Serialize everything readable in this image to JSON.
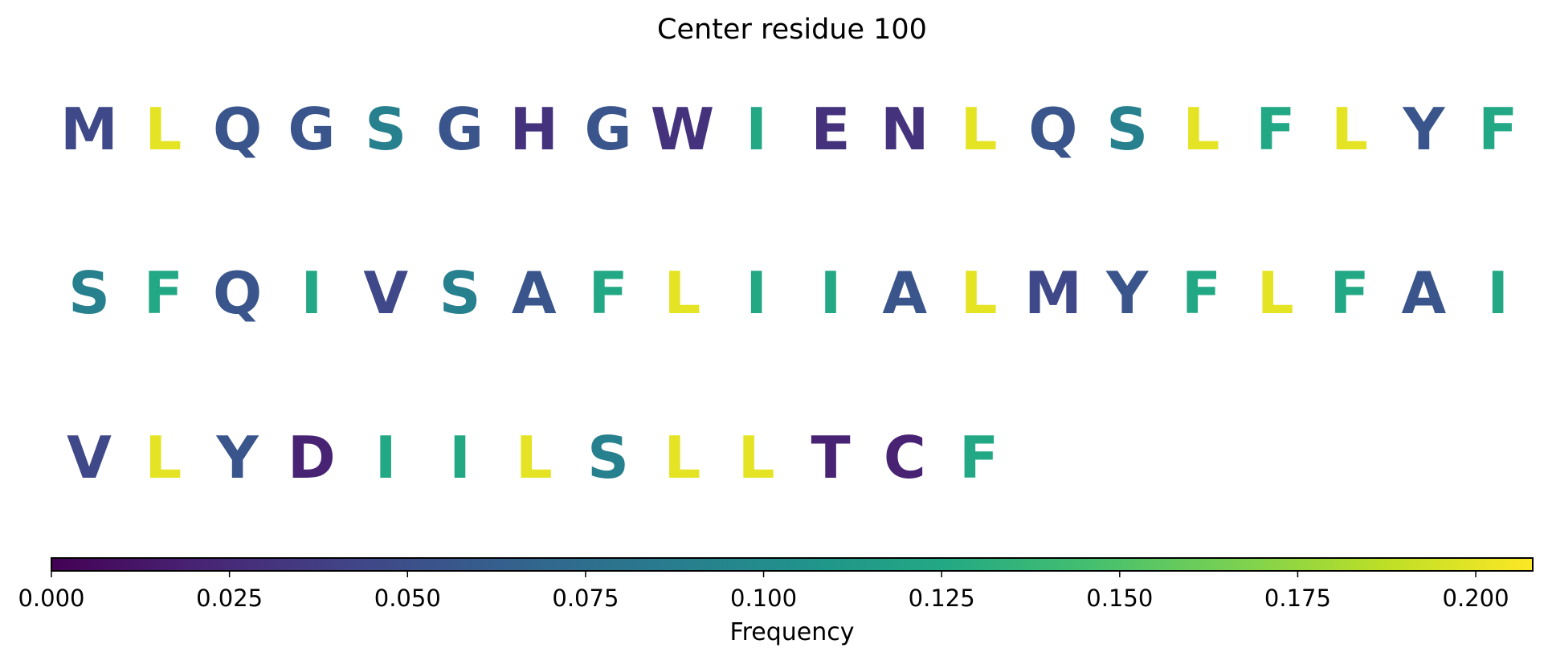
{
  "chart_data": {
    "type": "heatmap",
    "title": "Center residue 100",
    "sequence_rows": [
      [
        {
          "residue": "M",
          "frequency": 0.045
        },
        {
          "residue": "L",
          "frequency": 0.2
        },
        {
          "residue": "Q",
          "frequency": 0.055
        },
        {
          "residue": "G",
          "frequency": 0.055
        },
        {
          "residue": "S",
          "frequency": 0.09
        },
        {
          "residue": "G",
          "frequency": 0.055
        },
        {
          "residue": "H",
          "frequency": 0.03
        },
        {
          "residue": "G",
          "frequency": 0.055
        },
        {
          "residue": "W",
          "frequency": 0.03
        },
        {
          "residue": "I",
          "frequency": 0.125
        },
        {
          "residue": "E",
          "frequency": 0.03
        },
        {
          "residue": "N",
          "frequency": 0.03
        },
        {
          "residue": "L",
          "frequency": 0.2
        },
        {
          "residue": "Q",
          "frequency": 0.055
        },
        {
          "residue": "S",
          "frequency": 0.09
        },
        {
          "residue": "L",
          "frequency": 0.2
        },
        {
          "residue": "F",
          "frequency": 0.125
        },
        {
          "residue": "L",
          "frequency": 0.2
        },
        {
          "residue": "Y",
          "frequency": 0.055
        },
        {
          "residue": "F",
          "frequency": 0.125
        }
      ],
      [
        {
          "residue": "S",
          "frequency": 0.09
        },
        {
          "residue": "F",
          "frequency": 0.125
        },
        {
          "residue": "Q",
          "frequency": 0.055
        },
        {
          "residue": "I",
          "frequency": 0.125
        },
        {
          "residue": "V",
          "frequency": 0.045
        },
        {
          "residue": "S",
          "frequency": 0.09
        },
        {
          "residue": "A",
          "frequency": 0.055
        },
        {
          "residue": "F",
          "frequency": 0.125
        },
        {
          "residue": "L",
          "frequency": 0.2
        },
        {
          "residue": "I",
          "frequency": 0.125
        },
        {
          "residue": "I",
          "frequency": 0.125
        },
        {
          "residue": "A",
          "frequency": 0.055
        },
        {
          "residue": "L",
          "frequency": 0.2
        },
        {
          "residue": "M",
          "frequency": 0.045
        },
        {
          "residue": "Y",
          "frequency": 0.055
        },
        {
          "residue": "F",
          "frequency": 0.125
        },
        {
          "residue": "L",
          "frequency": 0.2
        },
        {
          "residue": "F",
          "frequency": 0.125
        },
        {
          "residue": "A",
          "frequency": 0.055
        },
        {
          "residue": "I",
          "frequency": 0.125
        }
      ],
      [
        {
          "residue": "V",
          "frequency": 0.045
        },
        {
          "residue": "L",
          "frequency": 0.2
        },
        {
          "residue": "Y",
          "frequency": 0.055
        },
        {
          "residue": "D",
          "frequency": 0.02
        },
        {
          "residue": "I",
          "frequency": 0.125
        },
        {
          "residue": "I",
          "frequency": 0.125
        },
        {
          "residue": "L",
          "frequency": 0.2
        },
        {
          "residue": "S",
          "frequency": 0.09
        },
        {
          "residue": "L",
          "frequency": 0.2
        },
        {
          "residue": "L",
          "frequency": 0.2
        },
        {
          "residue": "T",
          "frequency": 0.02
        },
        {
          "residue": "C",
          "frequency": 0.02
        },
        {
          "residue": "F",
          "frequency": 0.125
        }
      ]
    ],
    "colorbar": {
      "label": "Frequency",
      "range": [
        0,
        0.208
      ],
      "ticks": [
        "0.000",
        "0.025",
        "0.050",
        "0.075",
        "0.100",
        "0.125",
        "0.150",
        "0.175",
        "0.200"
      ],
      "tick_values": [
        0,
        0.025,
        0.05,
        0.075,
        0.1,
        0.125,
        0.15,
        0.175,
        0.2
      ],
      "colormap": "viridis",
      "orientation": "horizontal"
    }
  }
}
